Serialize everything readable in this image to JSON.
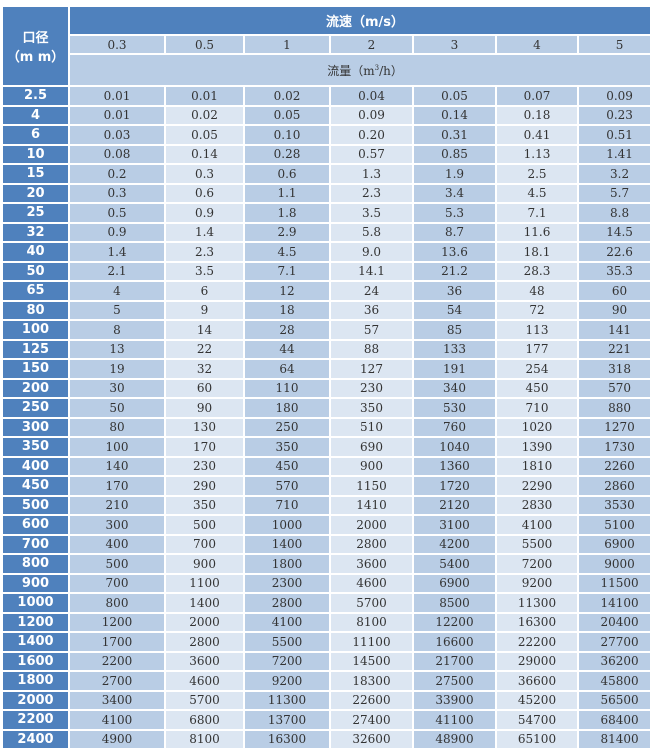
{
  "header": {
    "diameter_label": "口径",
    "diameter_unit": "（m m）",
    "speed_title": "流速（m/s）",
    "flow_label_prefix": "流量（m",
    "flow_label_sup": "3",
    "flow_label_suffix": "/h）",
    "speeds": [
      "0.3",
      "0.5",
      "1",
      "2",
      "3",
      "4",
      "5"
    ]
  },
  "colors": {
    "header_blue": "#4f81bd",
    "cell_dark": "#b9cde5",
    "cell_light": "#dce6f2"
  },
  "rows": [
    {
      "d": "2.5",
      "v": [
        "0.01",
        "0.01",
        "0.02",
        "0.04",
        "0.05",
        "0.07",
        "0.09"
      ]
    },
    {
      "d": "4",
      "v": [
        "0.01",
        "0.02",
        "0.05",
        "0.09",
        "0.14",
        "0.18",
        "0.23"
      ]
    },
    {
      "d": "6",
      "v": [
        "0.03",
        "0.05",
        "0.10",
        "0.20",
        "0.31",
        "0.41",
        "0.51"
      ]
    },
    {
      "d": "10",
      "v": [
        "0.08",
        "0.14",
        "0.28",
        "0.57",
        "0.85",
        "1.13",
        "1.41"
      ]
    },
    {
      "d": "15",
      "v": [
        "0.2",
        "0.3",
        "0.6",
        "1.3",
        "1.9",
        "2.5",
        "3.2"
      ]
    },
    {
      "d": "20",
      "v": [
        "0.3",
        "0.6",
        "1.1",
        "2.3",
        "3.4",
        "4.5",
        "5.7"
      ]
    },
    {
      "d": "25",
      "v": [
        "0.5",
        "0.9",
        "1.8",
        "3.5",
        "5.3",
        "7.1",
        "8.8"
      ]
    },
    {
      "d": "32",
      "v": [
        "0.9",
        "1.4",
        "2.9",
        "5.8",
        "8.7",
        "11.6",
        "14.5"
      ]
    },
    {
      "d": "40",
      "v": [
        "1.4",
        "2.3",
        "4.5",
        "9.0",
        "13.6",
        "18.1",
        "22.6"
      ]
    },
    {
      "d": "50",
      "v": [
        "2.1",
        "3.5",
        "7.1",
        "14.1",
        "21.2",
        "28.3",
        "35.3"
      ]
    },
    {
      "d": "65",
      "v": [
        "4",
        "6",
        "12",
        "24",
        "36",
        "48",
        "60"
      ]
    },
    {
      "d": "80",
      "v": [
        "5",
        "9",
        "18",
        "36",
        "54",
        "72",
        "90"
      ]
    },
    {
      "d": "100",
      "v": [
        "8",
        "14",
        "28",
        "57",
        "85",
        "113",
        "141"
      ]
    },
    {
      "d": "125",
      "v": [
        "13",
        "22",
        "44",
        "88",
        "133",
        "177",
        "221"
      ]
    },
    {
      "d": "150",
      "v": [
        "19",
        "32",
        "64",
        "127",
        "191",
        "254",
        "318"
      ]
    },
    {
      "d": "200",
      "v": [
        "30",
        "60",
        "110",
        "230",
        "340",
        "450",
        "570"
      ]
    },
    {
      "d": "250",
      "v": [
        "50",
        "90",
        "180",
        "350",
        "530",
        "710",
        "880"
      ]
    },
    {
      "d": "300",
      "v": [
        "80",
        "130",
        "250",
        "510",
        "760",
        "1020",
        "1270"
      ]
    },
    {
      "d": "350",
      "v": [
        "100",
        "170",
        "350",
        "690",
        "1040",
        "1390",
        "1730"
      ]
    },
    {
      "d": "400",
      "v": [
        "140",
        "230",
        "450",
        "900",
        "1360",
        "1810",
        "2260"
      ]
    },
    {
      "d": "450",
      "v": [
        "170",
        "290",
        "570",
        "1150",
        "1720",
        "2290",
        "2860"
      ]
    },
    {
      "d": "500",
      "v": [
        "210",
        "350",
        "710",
        "1410",
        "2120",
        "2830",
        "3530"
      ]
    },
    {
      "d": "600",
      "v": [
        "300",
        "500",
        "1000",
        "2000",
        "3100",
        "4100",
        "5100"
      ]
    },
    {
      "d": "700",
      "v": [
        "400",
        "700",
        "1400",
        "2800",
        "4200",
        "5500",
        "6900"
      ]
    },
    {
      "d": "800",
      "v": [
        "500",
        "900",
        "1800",
        "3600",
        "5400",
        "7200",
        "9000"
      ]
    },
    {
      "d": "900",
      "v": [
        "700",
        "1100",
        "2300",
        "4600",
        "6900",
        "9200",
        "11500"
      ]
    },
    {
      "d": "1000",
      "v": [
        "800",
        "1400",
        "2800",
        "5700",
        "8500",
        "11300",
        "14100"
      ]
    },
    {
      "d": "1200",
      "v": [
        "1200",
        "2000",
        "4100",
        "8100",
        "12200",
        "16300",
        "20400"
      ]
    },
    {
      "d": "1400",
      "v": [
        "1700",
        "2800",
        "5500",
        "11100",
        "16600",
        "22200",
        "27700"
      ]
    },
    {
      "d": "1600",
      "v": [
        "2200",
        "3600",
        "7200",
        "14500",
        "21700",
        "29000",
        "36200"
      ]
    },
    {
      "d": "1800",
      "v": [
        "2700",
        "4600",
        "9200",
        "18300",
        "27500",
        "36600",
        "45800"
      ]
    },
    {
      "d": "2000",
      "v": [
        "3400",
        "5700",
        "11300",
        "22600",
        "33900",
        "45200",
        "56500"
      ]
    },
    {
      "d": "2200",
      "v": [
        "4100",
        "6800",
        "13700",
        "27400",
        "41100",
        "54700",
        "68400"
      ]
    },
    {
      "d": "2400",
      "v": [
        "4900",
        "8100",
        "16300",
        "32600",
        "48900",
        "65100",
        "81400"
      ]
    }
  ]
}
